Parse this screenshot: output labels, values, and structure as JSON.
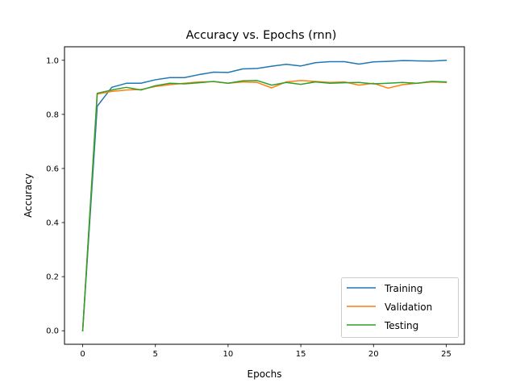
{
  "chart_data": {
    "type": "line",
    "title": "Accuracy vs. Epochs (rnn)",
    "xlabel": "Epochs",
    "ylabel": "Accuracy",
    "xlim": [
      -1.25,
      26.25
    ],
    "ylim": [
      -0.05,
      1.05
    ],
    "xticks": [
      0,
      5,
      10,
      15,
      20,
      25
    ],
    "xtick_labels": [
      "0",
      "5",
      "10",
      "15",
      "20",
      "25"
    ],
    "yticks": [
      0.0,
      0.2,
      0.4,
      0.6,
      0.8,
      1.0
    ],
    "ytick_labels": [
      "0.0",
      "0.2",
      "0.4",
      "0.6",
      "0.8",
      "1.0"
    ],
    "grid": false,
    "legend_position": "lower-right",
    "x": [
      0,
      1,
      2,
      3,
      4,
      5,
      6,
      7,
      8,
      9,
      10,
      11,
      12,
      13,
      14,
      15,
      16,
      17,
      18,
      19,
      20,
      21,
      22,
      23,
      24,
      25
    ],
    "series": [
      {
        "name": "Training",
        "color": "#1f77b4",
        "values": [
          0.0,
          0.83,
          0.9,
          0.915,
          0.915,
          0.928,
          0.936,
          0.936,
          0.947,
          0.956,
          0.955,
          0.968,
          0.97,
          0.978,
          0.985,
          0.979,
          0.991,
          0.995,
          0.995,
          0.986,
          0.994,
          0.996,
          0.999,
          0.998,
          0.997,
          1.0
        ]
      },
      {
        "name": "Validation",
        "color": "#ff7f0e",
        "values": [
          0.0,
          0.875,
          0.885,
          0.89,
          0.892,
          0.903,
          0.91,
          0.915,
          0.92,
          0.921,
          0.915,
          0.92,
          0.918,
          0.898,
          0.92,
          0.925,
          0.922,
          0.918,
          0.92,
          0.908,
          0.915,
          0.897,
          0.91,
          0.915,
          0.92,
          0.918
        ]
      },
      {
        "name": "Testing",
        "color": "#2ca02c",
        "values": [
          0.0,
          0.878,
          0.89,
          0.9,
          0.89,
          0.906,
          0.915,
          0.913,
          0.917,
          0.922,
          0.915,
          0.924,
          0.925,
          0.908,
          0.918,
          0.911,
          0.92,
          0.915,
          0.917,
          0.918,
          0.913,
          0.915,
          0.918,
          0.915,
          0.922,
          0.92
        ]
      }
    ]
  }
}
